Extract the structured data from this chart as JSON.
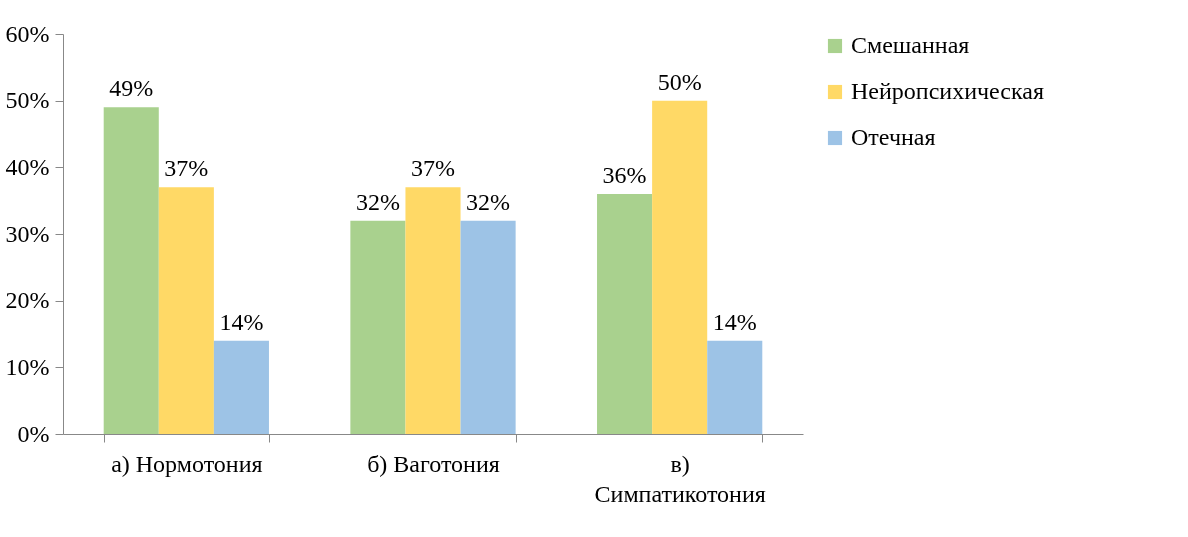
{
  "chart_data": {
    "type": "bar",
    "categories": [
      "а) Нормотония",
      "б) Ваготония",
      "в) Симпатикотония"
    ],
    "series": [
      {
        "name": "Смешанная",
        "color": "#a9d18e",
        "values": [
          49,
          32,
          36
        ],
        "value_labels": [
          "49%",
          "32%",
          "36%"
        ]
      },
      {
        "name": "Нейропсихическая",
        "color": "#ffd966",
        "values": [
          37,
          37,
          50
        ],
        "value_labels": [
          "37%",
          "37%",
          "50%"
        ]
      },
      {
        "name": "Отечная",
        "color": "#9dc3e6",
        "values": [
          14,
          32,
          14
        ],
        "value_labels": [
          "14%",
          "32%",
          "14%"
        ]
      }
    ],
    "ylim": [
      0,
      60
    ],
    "yticks": [
      {
        "value": 0,
        "label": "0%"
      },
      {
        "value": 10,
        "label": "10%"
      },
      {
        "value": 20,
        "label": "20%"
      },
      {
        "value": 30,
        "label": "30%"
      },
      {
        "value": 40,
        "label": "40%"
      },
      {
        "value": 50,
        "label": "50%"
      },
      {
        "value": 60,
        "label": "60%"
      }
    ],
    "grid": false,
    "legend": "right"
  }
}
